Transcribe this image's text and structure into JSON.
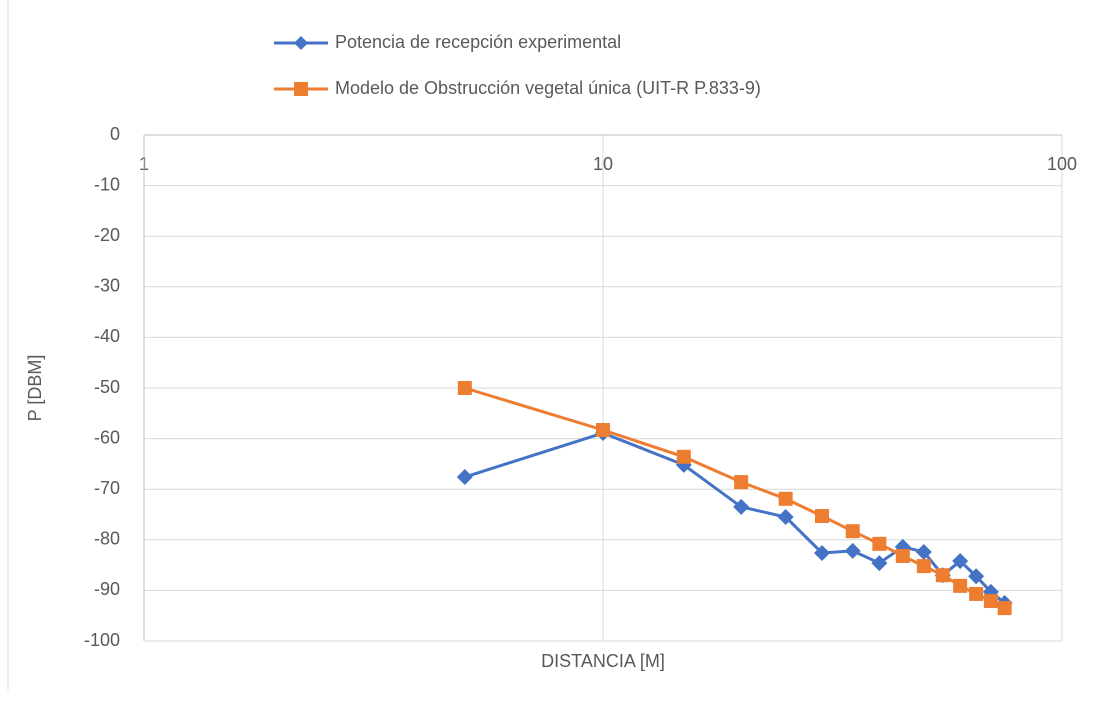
{
  "chart_data": {
    "type": "line",
    "x_axis_label": "DISTANCIA [M]",
    "y_axis_label": "P [DBM]",
    "xscale": "log",
    "xlim": [
      1,
      100
    ],
    "xticks": [
      1,
      10,
      100
    ],
    "ylim": [
      -100,
      0
    ],
    "yticks": [
      -100,
      -90,
      -80,
      -70,
      -60,
      -50,
      -40,
      -30,
      -20,
      -10,
      0
    ],
    "grid": true,
    "legend": "top",
    "x": [
      5,
      10,
      15,
      20,
      25,
      30,
      35,
      40,
      45,
      50,
      55,
      60,
      65,
      70,
      75
    ],
    "series": [
      {
        "name": "Potencia de recepción experimental",
        "color": "#4472c4",
        "marker": "diamond",
        "values": [
          -67.6,
          -58.9,
          -65.2,
          -73.5,
          -75.5,
          -82.6,
          -82.2,
          -84.6,
          -81.4,
          -82.4,
          -87.0,
          -84.2,
          -87.2,
          -90.3,
          -92.5
        ]
      },
      {
        "name": "Modelo de Obstrucción vegetal única (UIT-R P.833-9)",
        "color": "#ed7d31",
        "marker": "square",
        "values": [
          -50.0,
          -58.3,
          -63.6,
          -68.6,
          -71.9,
          -75.3,
          -78.3,
          -80.8,
          -83.2,
          -85.2,
          -87.0,
          -89.1,
          -90.7,
          -92.1,
          -93.5
        ]
      }
    ]
  }
}
